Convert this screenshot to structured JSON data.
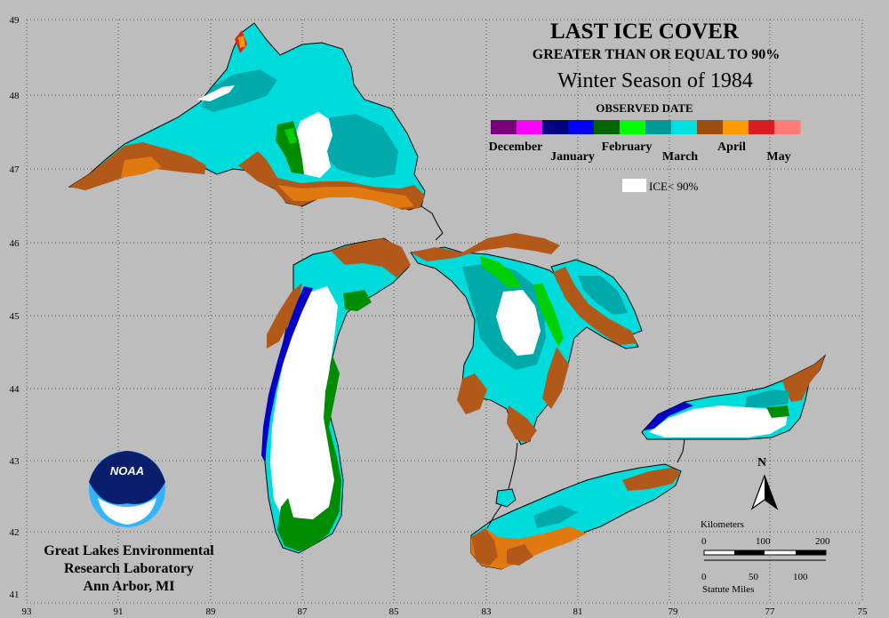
{
  "title": {
    "line1": "LAST ICE COVER",
    "line2": "GREATER THAN OR EQUAL TO 90%",
    "line3": "Winter Season of 1984",
    "observed": "OBSERVED DATE"
  },
  "legend": {
    "months": [
      "December",
      "January",
      "February",
      "March",
      "April",
      "May"
    ],
    "ice_label": "ICE< 90%",
    "segment_colors": [
      "#7a007a",
      "#ff00ff",
      "#000080",
      "#0000ff",
      "#006400",
      "#00ff00",
      "#009999",
      "#00e0e0",
      "#9b4f0f",
      "#ff9900",
      "#d71f1f",
      "#ff7a7a"
    ]
  },
  "axes": {
    "lat_labels": [
      "49",
      "48",
      "47",
      "46",
      "45",
      "44",
      "43",
      "42",
      "41"
    ],
    "lon_labels": [
      "93",
      "91",
      "89",
      "87",
      "85",
      "83",
      "81",
      "79",
      "77",
      "75"
    ]
  },
  "scale": {
    "km_title": "Kilometers",
    "km_ticks": [
      "0",
      "100",
      "200"
    ],
    "mi_ticks": [
      "0",
      "50",
      "100"
    ],
    "mi_title": "Statute Miles"
  },
  "north": "N",
  "logo_text": "NOAA",
  "credit": {
    "line1": "Great Lakes Environmental",
    "line2": "Research Laboratory",
    "line3": "Ann Arbor, MI"
  },
  "colors": {
    "background": "#bdbdbd",
    "ice_white": "#ffffff",
    "march_cyan": "#00e0e0",
    "march_teal": "#00b2b2",
    "april_brown": "#b2591a",
    "april_orange": "#e07a10",
    "january_blue": "#0000c8",
    "february_green": "#008c00"
  }
}
